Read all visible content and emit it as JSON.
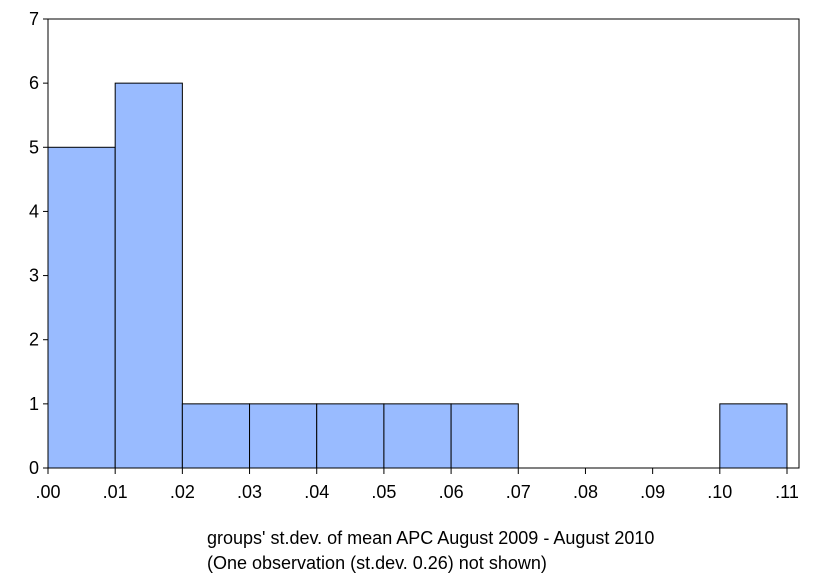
{
  "chart_data": {
    "type": "bar",
    "histogram": true,
    "bins": [
      {
        "from": 0.0,
        "to": 0.01,
        "count": 5
      },
      {
        "from": 0.01,
        "to": 0.02,
        "count": 6
      },
      {
        "from": 0.02,
        "to": 0.03,
        "count": 1
      },
      {
        "from": 0.03,
        "to": 0.04,
        "count": 1
      },
      {
        "from": 0.04,
        "to": 0.05,
        "count": 1
      },
      {
        "from": 0.05,
        "to": 0.06,
        "count": 1
      },
      {
        "from": 0.06,
        "to": 0.07,
        "count": 1
      },
      {
        "from": 0.07,
        "to": 0.08,
        "count": 0
      },
      {
        "from": 0.08,
        "to": 0.09,
        "count": 0
      },
      {
        "from": 0.09,
        "to": 0.1,
        "count": 0
      },
      {
        "from": 0.1,
        "to": 0.11,
        "count": 1
      }
    ],
    "x_ticks": [
      ".00",
      ".01",
      ".02",
      ".03",
      ".04",
      ".05",
      ".06",
      ".07",
      ".08",
      ".09",
      ".10",
      ".11"
    ],
    "y_ticks": [
      "0",
      "1",
      "2",
      "3",
      "4",
      "5",
      "6",
      "7"
    ],
    "xlim": [
      0.0,
      0.11
    ],
    "ylim": [
      0,
      7
    ],
    "xlabel": "groups' st.dev. of mean APC August 2009 - August 2010",
    "note": "(One observation (st.dev. 0.26) not shown)",
    "grid": false,
    "bar_color": "#99BBFF",
    "edge_color": "#000000"
  }
}
